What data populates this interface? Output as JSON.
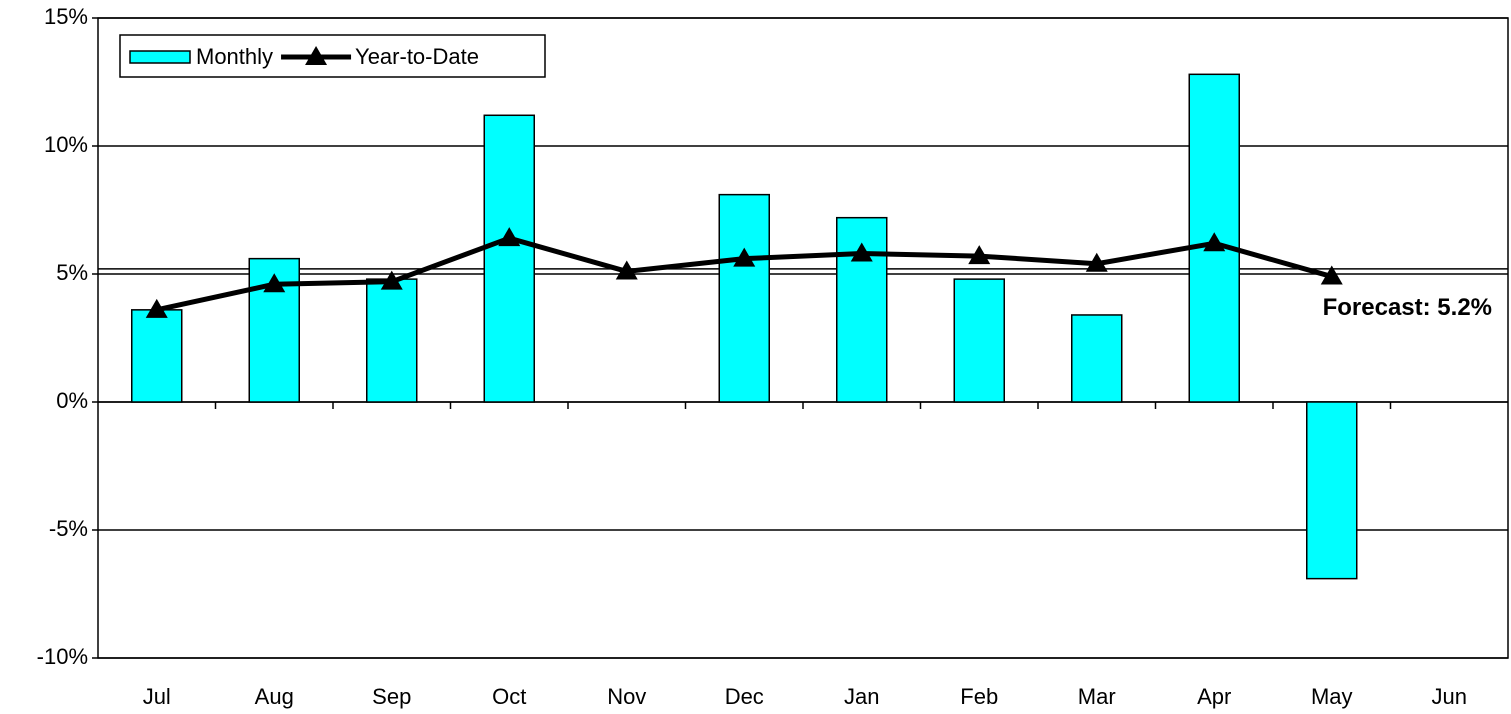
{
  "chart_data": {
    "type": "bar-line",
    "categories": [
      "Jul",
      "Aug",
      "Sep",
      "Oct",
      "Nov",
      "Dec",
      "Jan",
      "Feb",
      "Mar",
      "Apr",
      "May",
      "Jun"
    ],
    "series": [
      {
        "name": "Monthly",
        "type": "bar",
        "color": "#00ffff",
        "values": [
          3.6,
          5.6,
          4.8,
          11.2,
          null,
          8.1,
          7.2,
          4.8,
          3.4,
          12.8,
          -6.9,
          null
        ]
      },
      {
        "name": "Year-to-Date",
        "type": "line",
        "color": "#000000",
        "values": [
          3.6,
          4.6,
          4.7,
          6.4,
          5.1,
          5.6,
          5.8,
          5.7,
          5.4,
          6.2,
          4.9,
          null
        ]
      }
    ],
    "forecast": {
      "value": 5.2,
      "label": "Forecast: 5.2%"
    },
    "ylim": [
      -10,
      15
    ],
    "yticks": [
      {
        "value": -10,
        "label": "-10%"
      },
      {
        "value": -5,
        "label": "-5%"
      },
      {
        "value": 0,
        "label": "0%"
      },
      {
        "value": 5,
        "label": "5%"
      },
      {
        "value": 10,
        "label": "10%"
      },
      {
        "value": 15,
        "label": "15%"
      }
    ],
    "grid": true,
    "legend": "top-left"
  }
}
